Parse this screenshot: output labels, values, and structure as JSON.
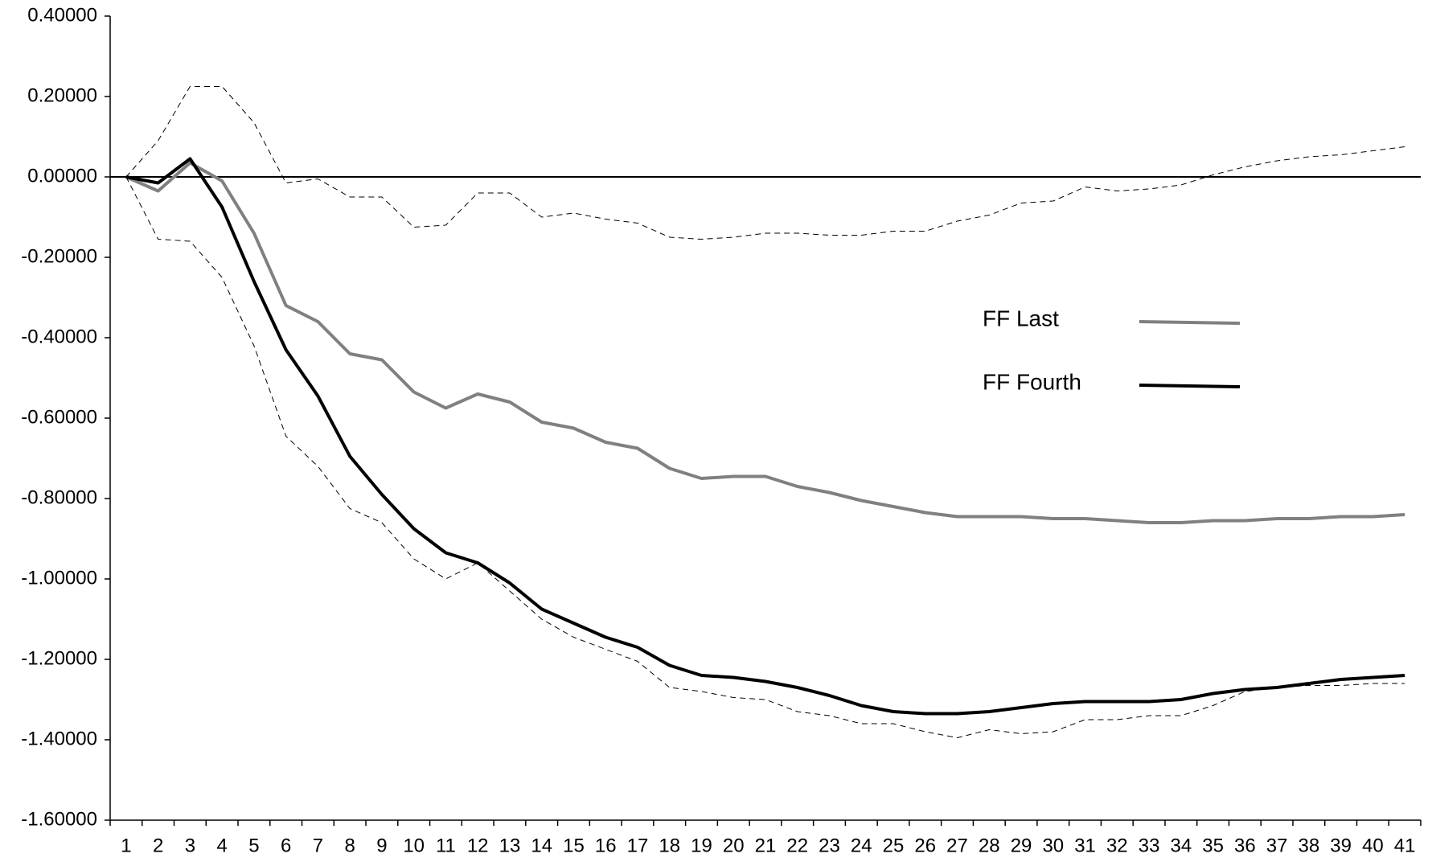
{
  "chart_data": {
    "type": "line",
    "categories": [
      1,
      2,
      3,
      4,
      5,
      6,
      7,
      8,
      9,
      10,
      11,
      12,
      13,
      14,
      15,
      16,
      17,
      18,
      19,
      20,
      21,
      22,
      23,
      24,
      25,
      26,
      27,
      28,
      29,
      30,
      31,
      32,
      33,
      34,
      35,
      36,
      37,
      38,
      39,
      40,
      41
    ],
    "ylim": [
      -1.6,
      0.4
    ],
    "yticks": [
      {
        "value": 0.4,
        "label": "0.40000"
      },
      {
        "value": 0.2,
        "label": "0.20000"
      },
      {
        "value": 0,
        "label": "0.00000"
      },
      {
        "value": -0.2,
        "label": "-0.20000"
      },
      {
        "value": -0.4,
        "label": "-0.40000"
      },
      {
        "value": -0.6,
        "label": "-0.60000"
      },
      {
        "value": -0.8,
        "label": "-0.80000"
      },
      {
        "value": -1.0,
        "label": "-1.00000"
      },
      {
        "value": -1.2,
        "label": "-1.20000"
      },
      {
        "value": -1.4,
        "label": "-1.40000"
      },
      {
        "value": -1.6,
        "label": "-1.60000"
      }
    ],
    "zero_line": true,
    "legend": "center-right",
    "series": [
      {
        "name": "FF Last",
        "color": "#808080",
        "style": "solid",
        "width": 4,
        "values": [
          0,
          -0.035,
          0.035,
          -0.01,
          -0.14,
          -0.32,
          -0.36,
          -0.44,
          -0.455,
          -0.535,
          -0.575,
          -0.54,
          -0.56,
          -0.61,
          -0.625,
          -0.66,
          -0.675,
          -0.725,
          -0.75,
          -0.745,
          -0.745,
          -0.77,
          -0.785,
          -0.805,
          -0.82,
          -0.835,
          -0.845,
          -0.845,
          -0.845,
          -0.85,
          -0.85,
          -0.855,
          -0.86,
          -0.86,
          -0.855,
          -0.855,
          -0.85,
          -0.85,
          -0.845,
          -0.845,
          -0.84
        ]
      },
      {
        "name": "FF Fourth",
        "color": "#000000",
        "style": "solid",
        "width": 4,
        "values": [
          0,
          -0.015,
          0.045,
          -0.075,
          -0.26,
          -0.43,
          -0.545,
          -0.695,
          -0.79,
          -0.875,
          -0.935,
          -0.96,
          -1.01,
          -1.075,
          -1.11,
          -1.145,
          -1.17,
          -1.215,
          -1.24,
          -1.245,
          -1.255,
          -1.27,
          -1.29,
          -1.315,
          -1.33,
          -1.335,
          -1.335,
          -1.33,
          -1.32,
          -1.31,
          -1.305,
          -1.305,
          -1.305,
          -1.3,
          -1.285,
          -1.275,
          -1.27,
          -1.26,
          -1.25,
          -1.245,
          -1.24
        ]
      },
      {
        "color": "#000000",
        "style": "dashed",
        "width": 1,
        "values": [
          0,
          0.09,
          0.225,
          0.225,
          0.135,
          -0.015,
          -0.005,
          -0.05,
          -0.05,
          -0.125,
          -0.12,
          -0.04,
          -0.04,
          -0.1,
          -0.09,
          -0.105,
          -0.115,
          -0.15,
          -0.155,
          -0.15,
          -0.14,
          -0.14,
          -0.145,
          -0.145,
          -0.135,
          -0.135,
          -0.11,
          -0.095,
          -0.065,
          -0.06,
          -0.025,
          -0.035,
          -0.03,
          -0.02,
          0.005,
          0.025,
          0.04,
          0.05,
          0.055,
          0.065,
          0.075
        ]
      },
      {
        "color": "#000000",
        "style": "dashed",
        "width": 1,
        "values": [
          0,
          -0.155,
          -0.16,
          -0.25,
          -0.42,
          -0.645,
          -0.72,
          -0.825,
          -0.86,
          -0.95,
          -1.0,
          -0.96,
          -1.03,
          -1.1,
          -1.145,
          -1.175,
          -1.205,
          -1.27,
          -1.28,
          -1.295,
          -1.3,
          -1.33,
          -1.34,
          -1.36,
          -1.36,
          -1.38,
          -1.395,
          -1.375,
          -1.385,
          -1.38,
          -1.35,
          -1.35,
          -1.34,
          -1.34,
          -1.315,
          -1.28,
          -1.27,
          -1.265,
          -1.265,
          -1.26,
          -1.26
        ]
      }
    ]
  }
}
